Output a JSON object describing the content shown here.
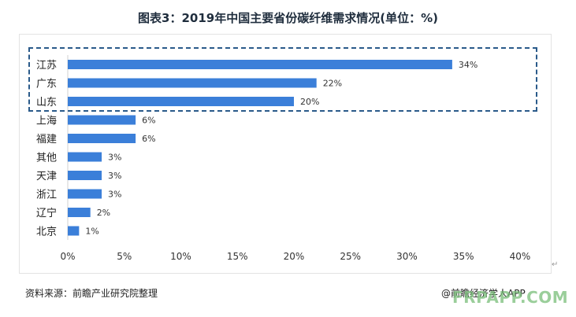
{
  "title": "图表3：2019年中国主要省份碳纤维需求情况(单位：%)",
  "chart_data": {
    "type": "bar",
    "orientation": "horizontal",
    "categories": [
      "江苏",
      "广东",
      "山东",
      "上海",
      "福建",
      "其他",
      "天津",
      "浙江",
      "辽宁",
      "北京"
    ],
    "values": [
      34,
      22,
      20,
      6,
      6,
      3,
      3,
      3,
      2,
      1
    ],
    "value_labels": [
      "34%",
      "22%",
      "20%",
      "6%",
      "6%",
      "3%",
      "3%",
      "3%",
      "2%",
      "1%"
    ],
    "xlim": [
      0,
      40
    ],
    "xticks": [
      0,
      5,
      10,
      15,
      20,
      25,
      30,
      35,
      40
    ],
    "xtick_labels": [
      "0%",
      "5%",
      "10%",
      "15%",
      "20%",
      "25%",
      "30%",
      "35%",
      "40%"
    ],
    "xlabel": "",
    "ylabel": "",
    "grid": false,
    "bar_color": "#3b7fd9",
    "highlighted_categories": [
      "江苏",
      "广东",
      "山东"
    ]
  },
  "source_text": "资料来源：前瞻产业研究院整理",
  "credit_text": "@前瞻经济学人APP",
  "watermark_text": "FRPAPP.COM",
  "return_mark": "↵"
}
